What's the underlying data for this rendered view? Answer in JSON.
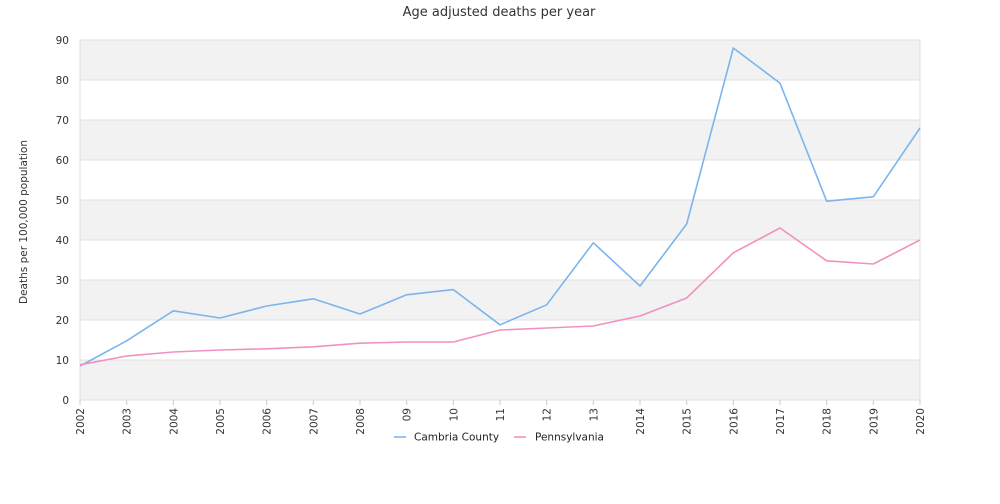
{
  "chart_data": {
    "type": "line",
    "title": "Age adjusted deaths per year",
    "xlabel": "",
    "ylabel": "Deaths per 100,000 population",
    "ylim": [
      0,
      90
    ],
    "yticks": [
      0,
      10,
      20,
      30,
      40,
      50,
      60,
      70,
      80,
      90
    ],
    "grid": true,
    "legend_position": "bottom",
    "categories": [
      "2002",
      "2003",
      "2004",
      "2005",
      "2006",
      "2007",
      "2008",
      "09",
      "10",
      "11",
      "12",
      "13",
      "2014",
      "2015",
      "2016",
      "2017",
      "2018",
      "2019",
      "2020"
    ],
    "series": [
      {
        "name": "Cambria County",
        "color": "#7cb5ec",
        "values": [
          8.5,
          14.8,
          22.3,
          20.5,
          23.5,
          25.3,
          21.5,
          26.3,
          27.6,
          18.8,
          23.8,
          39.3,
          28.5,
          44.0,
          88.0,
          79.2,
          49.7,
          50.8,
          68.0
        ]
      },
      {
        "name": "Pennsylvania",
        "color": "#f191c0",
        "values": [
          8.8,
          11.0,
          12.0,
          12.5,
          12.8,
          13.3,
          14.2,
          14.5,
          14.5,
          17.5,
          18.0,
          18.5,
          21.0,
          25.5,
          36.8,
          43.0,
          34.8,
          34.0,
          40.0
        ]
      }
    ]
  }
}
